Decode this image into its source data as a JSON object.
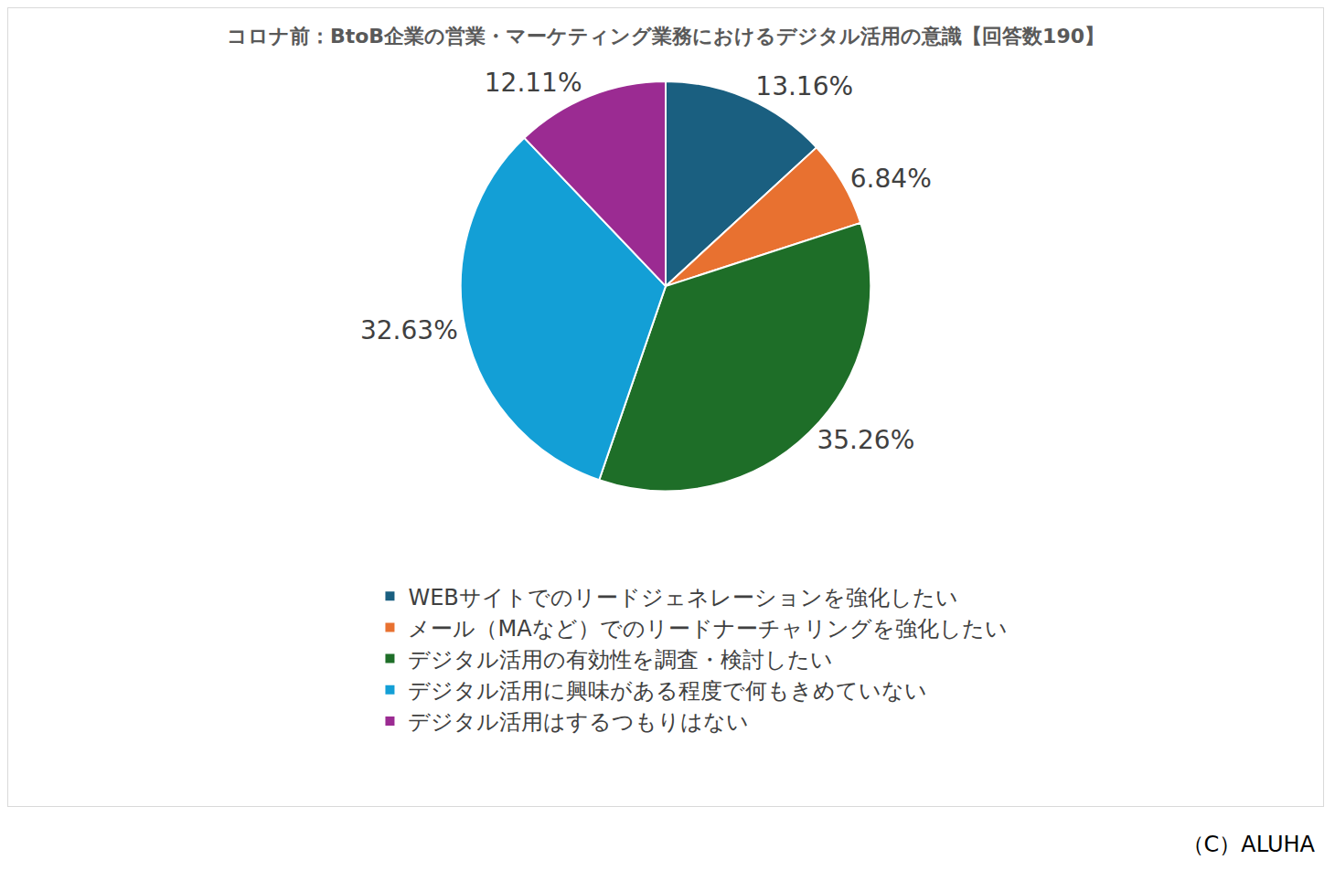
{
  "chart_data": {
    "type": "pie",
    "title": "コロナ前：BtoB企業の営業・マーケティング業務におけるデジタル活用の意識【回答数190】",
    "categories": [
      "WEBサイトでのリードジェネレーションを強化したい",
      "メール（MAなど）でのリードナーチャリングを強化したい",
      "デジタル活用の有効性を調査・検討したい",
      "デジタル活用に興味がある程度で何もきめていない",
      "デジタル活用はするつもりはない"
    ],
    "values": [
      13.16,
      6.84,
      35.26,
      32.63,
      12.11
    ],
    "value_labels": [
      "13.16%",
      "6.84%",
      "35.26%",
      "32.63%",
      "12.11%"
    ],
    "colors": [
      "#1a5f80",
      "#e87130",
      "#1e6e28",
      "#139fd6",
      "#9b2b92"
    ],
    "data_labels": true,
    "legend": "bottom",
    "annotation": "（C）ALUHA"
  }
}
